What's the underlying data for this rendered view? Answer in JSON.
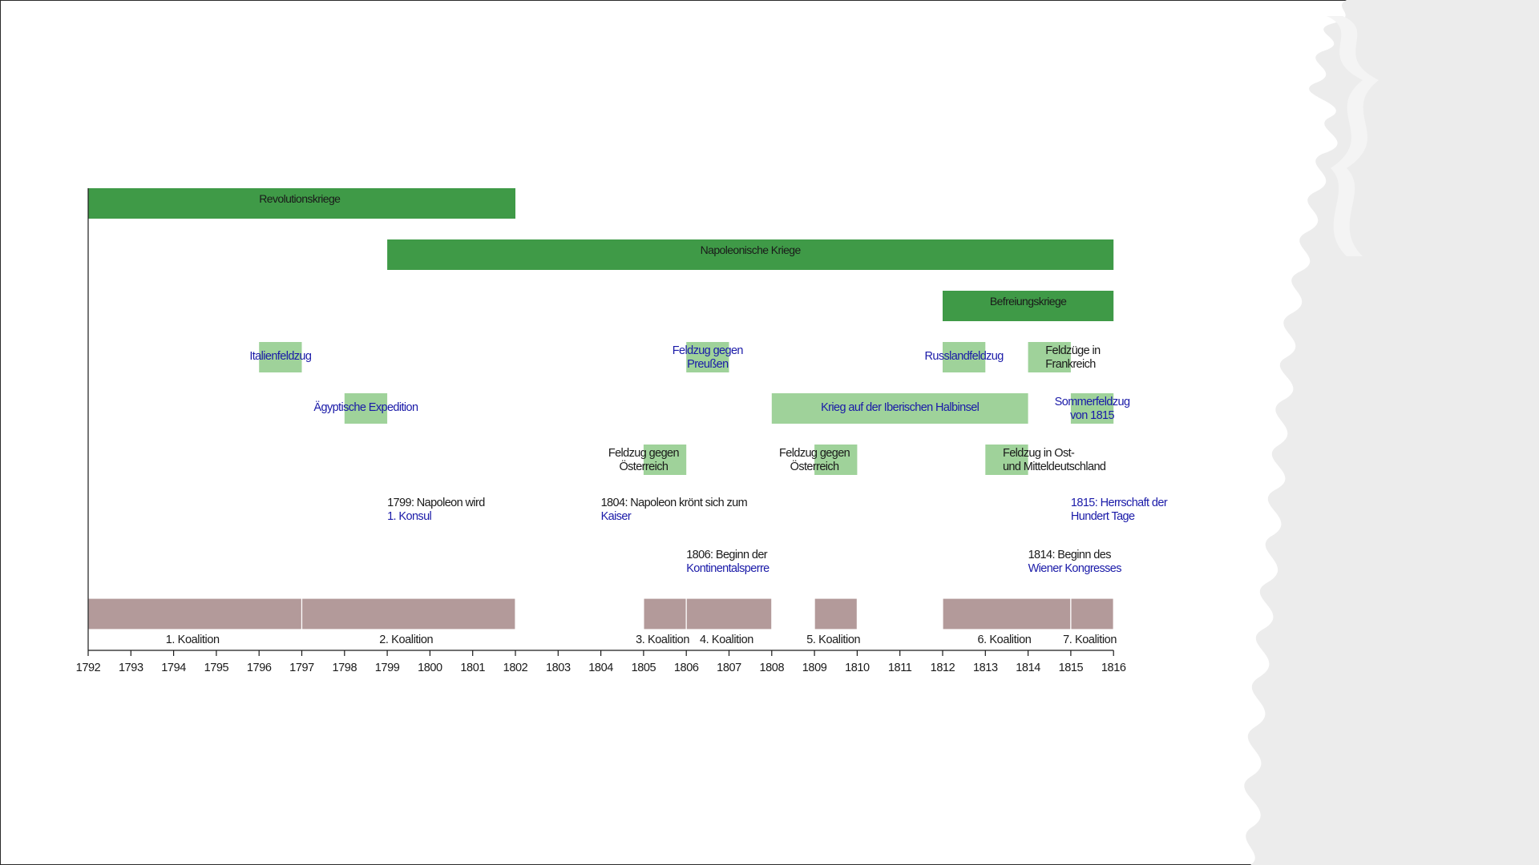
{
  "axis": {
    "start": 1792,
    "end": 1816,
    "ticks": [
      1792,
      1793,
      1794,
      1795,
      1796,
      1797,
      1798,
      1799,
      1800,
      1801,
      1802,
      1803,
      1804,
      1805,
      1806,
      1807,
      1808,
      1809,
      1810,
      1811,
      1812,
      1813,
      1814,
      1815,
      1816
    ]
  },
  "colors": {
    "dark_green": "#3f9a47",
    "light_green": "#9fd29a",
    "coalition": "#b39a9a",
    "link_blue": "#1a1aa8",
    "text": "#1a1a1a"
  },
  "wars": [
    {
      "label": "Revolutionskriege",
      "start": 1792,
      "end": 1802,
      "row": 0,
      "color": "dark",
      "link": false
    },
    {
      "label": "Napoleonische Kriege",
      "start": 1799,
      "end": 1816,
      "row": 1,
      "color": "dark",
      "link": false
    },
    {
      "label": "Befreiungskriege",
      "start": 1812,
      "end": 1816,
      "row": 2,
      "color": "dark",
      "link": true
    }
  ],
  "campaigns": [
    {
      "id": "italienfeldzug",
      "lines": [
        "Italienfeldzug"
      ],
      "start": 1796,
      "end": 1797,
      "row": 3,
      "link": true,
      "anchor": "middle",
      "at": 1796.5
    },
    {
      "id": "feldzug-preussen",
      "lines": [
        "Feldzug gegen",
        "Preußen"
      ],
      "start": 1806,
      "end": 1807,
      "row": 3,
      "link": true,
      "anchor": "middle",
      "at": 1806.5
    },
    {
      "id": "russlandfeldzug",
      "lines": [
        "Russlandfeldzug"
      ],
      "start": 1812,
      "end": 1813,
      "row": 3,
      "link": true,
      "anchor": "middle",
      "at": 1812.5
    },
    {
      "id": "feldzuege-frankreich",
      "lines": [
        "Feldzüge in",
        "Frankreich"
      ],
      "start": 1814,
      "end": 1815,
      "row": 3,
      "link": false,
      "anchor": "start",
      "at": 1814.5
    },
    {
      "id": "aegyptische-expedition",
      "lines": [
        "Ägyptische Expedition"
      ],
      "start": 1798,
      "end": 1799,
      "row": 4,
      "link": true,
      "anchor": "middle",
      "at": 1798.5
    },
    {
      "id": "krieg-iberische-halbinsel",
      "lines": [
        "Krieg auf der Iberischen Halbinsel"
      ],
      "start": 1808,
      "end": 1814,
      "row": 4,
      "link": true,
      "anchor": "middle",
      "at": 1811
    },
    {
      "id": "sommerfeldzug-1815",
      "lines": [
        "Sommerfeldzug",
        "von 1815"
      ],
      "start": 1815,
      "end": 1816,
      "row": 4,
      "link": true,
      "anchor": "middle",
      "at": 1815.5
    },
    {
      "id": "feldzug-oesterreich-1805",
      "lines": [
        "Feldzug gegen",
        "Österreich"
      ],
      "start": 1805,
      "end": 1806,
      "row": 5,
      "link": false,
      "anchor": "middle",
      "at": 1805
    },
    {
      "id": "feldzug-oesterreich-1809",
      "lines": [
        "Feldzug gegen",
        "Österreich"
      ],
      "start": 1809,
      "end": 1810,
      "row": 5,
      "link": false,
      "anchor": "middle",
      "at": 1809
    },
    {
      "id": "feldzug-ost-mitteldeutschland",
      "lines": [
        "Feldzug in Ost-",
        "und Mitteldeutschland"
      ],
      "start": 1813,
      "end": 1814,
      "row": 5,
      "link": false,
      "anchor": "start",
      "at": 1813.5
    }
  ],
  "events": [
    {
      "id": "event-1799",
      "row": 6,
      "at": 1799,
      "line1": "1799: Napoleon wird",
      "line2": "1. Konsul",
      "line1_link": false
    },
    {
      "id": "event-1804",
      "row": 6,
      "at": 1804,
      "line1": "1804: Napoleon krönt sich zum",
      "line2": "Kaiser",
      "line1_link": false
    },
    {
      "id": "event-1815",
      "row": 6,
      "at": 1815,
      "line1": "1815: Herrschaft der",
      "line2": "Hundert Tage",
      "line1_link": true
    },
    {
      "id": "event-1806",
      "row": 7,
      "at": 1806,
      "line1": "1806: Beginn der",
      "line2": "Kontinentalsperre",
      "line1_link": false
    },
    {
      "id": "event-1814",
      "row": 7,
      "at": 1814,
      "line1": "1814: Beginn des",
      "line2": "Wiener Kongresses",
      "line1_link": false
    }
  ],
  "coalitions": [
    {
      "label": "1. Koalition",
      "start": 1792,
      "end": 1797
    },
    {
      "label": "2. Koalition",
      "start": 1797,
      "end": 1802
    },
    {
      "label": "3. Koalition",
      "start": 1805,
      "end": 1806
    },
    {
      "label": "4. Koalition",
      "start": 1806,
      "end": 1808
    },
    {
      "label": "5. Koalition",
      "start": 1809,
      "end": 1810
    },
    {
      "label": "6. Koalition",
      "start": 1812,
      "end": 1815
    },
    {
      "label": "7. Koalition",
      "start": 1815,
      "end": 1816
    }
  ]
}
